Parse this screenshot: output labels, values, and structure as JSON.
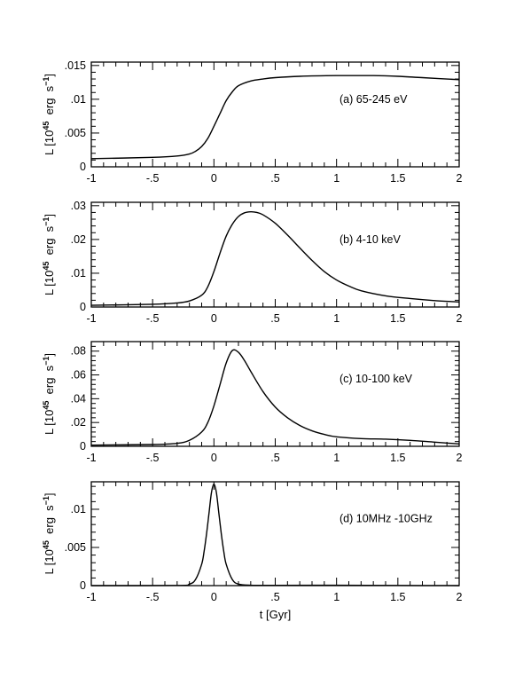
{
  "chart_data": [
    {
      "type": "line",
      "annotation": "(a) 65-245 eV",
      "xlim": [
        -1,
        2
      ],
      "ylim": [
        0,
        0.0155
      ],
      "xticks": [
        "-1",
        "-.5",
        "0",
        ".5",
        "1",
        "1.5",
        "2"
      ],
      "xtick_values": [
        -1,
        -0.5,
        0,
        0.5,
        1,
        1.5,
        2
      ],
      "yticks": [
        "0",
        ".005",
        ".01",
        ".015"
      ],
      "ytick_values": [
        0,
        0.005,
        0.01,
        0.015
      ],
      "ylabel": {
        "pre": "L [10",
        "sup1": "45",
        "mid": " erg s",
        "sup2": "−1",
        "post": "]"
      },
      "grid": false,
      "series": [
        {
          "x": [
            -1,
            -0.5,
            -0.3,
            -0.2,
            -0.15,
            -0.1,
            -0.05,
            0,
            0.05,
            0.1,
            0.15,
            0.2,
            0.3,
            0.4,
            0.5,
            0.7,
            1.0,
            1.3,
            1.5,
            1.7,
            2.0
          ],
          "y": [
            0.0012,
            0.0014,
            0.0016,
            0.0019,
            0.0023,
            0.003,
            0.0042,
            0.006,
            0.0079,
            0.0098,
            0.0111,
            0.012,
            0.0127,
            0.013,
            0.0132,
            0.0134,
            0.0135,
            0.0135,
            0.0134,
            0.0132,
            0.0129
          ]
        }
      ]
    },
    {
      "type": "line",
      "annotation": "(b) 4-10 keV",
      "xlim": [
        -1,
        2
      ],
      "ylim": [
        0,
        0.031
      ],
      "xticks": [
        "-1",
        "-.5",
        "0",
        ".5",
        "1",
        "1.5",
        "2"
      ],
      "xtick_values": [
        -1,
        -0.5,
        0,
        0.5,
        1,
        1.5,
        2
      ],
      "yticks": [
        "0",
        ".01",
        ".02",
        ".03"
      ],
      "ytick_values": [
        0,
        0.01,
        0.02,
        0.03
      ],
      "ylabel": {
        "pre": "L [10",
        "sup1": "45",
        "mid": " erg s",
        "sup2": "−1",
        "post": "]"
      },
      "grid": false,
      "series": [
        {
          "x": [
            -1,
            -0.5,
            -0.3,
            -0.2,
            -0.1,
            -0.05,
            0,
            0.05,
            0.1,
            0.15,
            0.2,
            0.25,
            0.3,
            0.35,
            0.4,
            0.5,
            0.6,
            0.7,
            0.8,
            0.9,
            1.0,
            1.1,
            1.2,
            1.4,
            1.6,
            1.8,
            2.0
          ],
          "y": [
            0.0005,
            0.0008,
            0.0012,
            0.0018,
            0.0035,
            0.006,
            0.0105,
            0.016,
            0.021,
            0.0245,
            0.0268,
            0.0279,
            0.0282,
            0.028,
            0.0273,
            0.0248,
            0.0213,
            0.0175,
            0.0138,
            0.0105,
            0.008,
            0.0062,
            0.0048,
            0.0033,
            0.0025,
            0.0019,
            0.0015
          ]
        }
      ]
    },
    {
      "type": "line",
      "annotation": "(c) 10-100 keV",
      "xlim": [
        -1,
        2
      ],
      "ylim": [
        0,
        0.088
      ],
      "xticks": [
        "-1",
        "-.5",
        "0",
        ".5",
        "1",
        "1.5",
        "2"
      ],
      "xtick_values": [
        -1,
        -0.5,
        0,
        0.5,
        1,
        1.5,
        2
      ],
      "yticks": [
        "0",
        ".02",
        ".04",
        ".06",
        ".08"
      ],
      "ytick_values": [
        0,
        0.02,
        0.04,
        0.06,
        0.08
      ],
      "ylabel": {
        "pre": "L [10",
        "sup1": "45",
        "mid": " erg s",
        "sup2": "−1",
        "post": "]"
      },
      "grid": false,
      "series": [
        {
          "x": [
            -1,
            -0.5,
            -0.3,
            -0.2,
            -0.1,
            -0.05,
            0,
            0.05,
            0.1,
            0.15,
            0.2,
            0.25,
            0.3,
            0.4,
            0.5,
            0.6,
            0.7,
            0.8,
            0.9,
            1.0,
            1.2,
            1.4,
            1.6,
            1.8,
            2.0
          ],
          "y": [
            0.001,
            0.0015,
            0.0025,
            0.005,
            0.012,
            0.02,
            0.034,
            0.052,
            0.07,
            0.0805,
            0.079,
            0.072,
            0.063,
            0.046,
            0.033,
            0.024,
            0.0175,
            0.013,
            0.01,
            0.008,
            0.0065,
            0.006,
            0.005,
            0.0035,
            0.002
          ]
        }
      ]
    },
    {
      "type": "line",
      "annotation": "(d) 10MHz -10GHz",
      "xlim": [
        -1,
        2
      ],
      "ylim": [
        0,
        0.0136
      ],
      "xticks": [
        "-1",
        "-.5",
        "0",
        ".5",
        "1",
        "1.5",
        "2"
      ],
      "xtick_values": [
        -1,
        -0.5,
        0,
        0.5,
        1,
        1.5,
        2
      ],
      "yticks": [
        "0",
        ".005",
        ".01"
      ],
      "ytick_values": [
        0,
        0.005,
        0.01
      ],
      "ylabel": {
        "pre": "L [10",
        "sup1": "45",
        "mid": " erg s",
        "sup2": "−1",
        "post": "]"
      },
      "xlabel": "t [Gyr]",
      "grid": false,
      "series": [
        {
          "x": [
            -1,
            -0.3,
            -0.2,
            -0.15,
            -0.1,
            -0.08,
            -0.06,
            -0.04,
            -0.02,
            0,
            0.02,
            0.04,
            0.06,
            0.08,
            0.1,
            0.15,
            0.2,
            0.3,
            0.5,
            1.0,
            1.5,
            2.0
          ],
          "y": [
            0,
            2e-05,
            0.0002,
            0.0008,
            0.0028,
            0.0045,
            0.0068,
            0.0095,
            0.0122,
            0.0133,
            0.0122,
            0.0095,
            0.0068,
            0.0045,
            0.0028,
            0.0008,
            0.0002,
            5e-05,
            3e-05,
            5e-05,
            2e-05,
            0
          ]
        }
      ]
    }
  ]
}
